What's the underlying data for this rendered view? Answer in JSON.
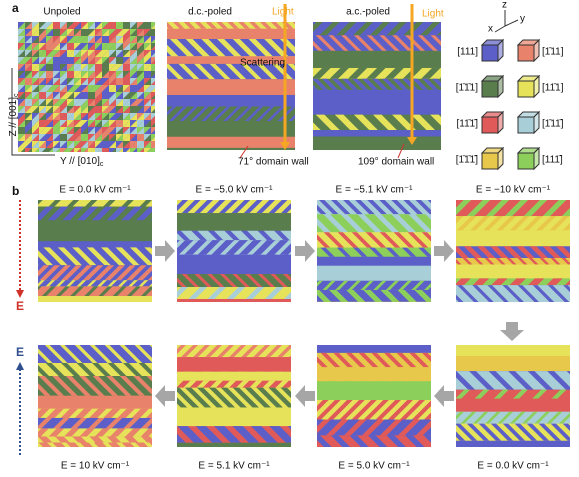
{
  "panel_a": {
    "label": "a",
    "titles": [
      "Unpoled",
      "d.c.-poled",
      "a.c.-poled"
    ],
    "light": [
      "Light",
      "Light"
    ],
    "scattering": "Scattering",
    "axis_z": "Z // [001]",
    "axis_z_sub": "c",
    "axis_y": "Y // [010]",
    "axis_y_sub": "c",
    "wall_71": "71° domain wall",
    "wall_109": "109° domain wall",
    "triad": [
      "z",
      "x",
      "y"
    ],
    "legend": [
      [
        "[111]",
        "[1̄11]"
      ],
      [
        "[1̄1̄1]",
        "[11̄1]"
      ],
      [
        "[11̄1̄]",
        "[1̄11̄]"
      ],
      [
        "[1̄1̄1̄]",
        "[111̄]"
      ]
    ]
  },
  "panel_b": {
    "label": "b",
    "top_labels": [
      "E = 0.0 kV cm⁻¹",
      "E = −5.0 kV cm⁻¹",
      "E = −5.1 kV cm⁻¹",
      "E = −10 kV cm⁻¹"
    ],
    "bottom_labels": [
      "E = 10 kV cm⁻¹",
      "E = 5.1 kV cm⁻¹",
      "E = 5.0 kV cm⁻¹",
      "E = 0.0 kV cm⁻¹"
    ],
    "field_down": "E",
    "field_up": "E"
  }
}
